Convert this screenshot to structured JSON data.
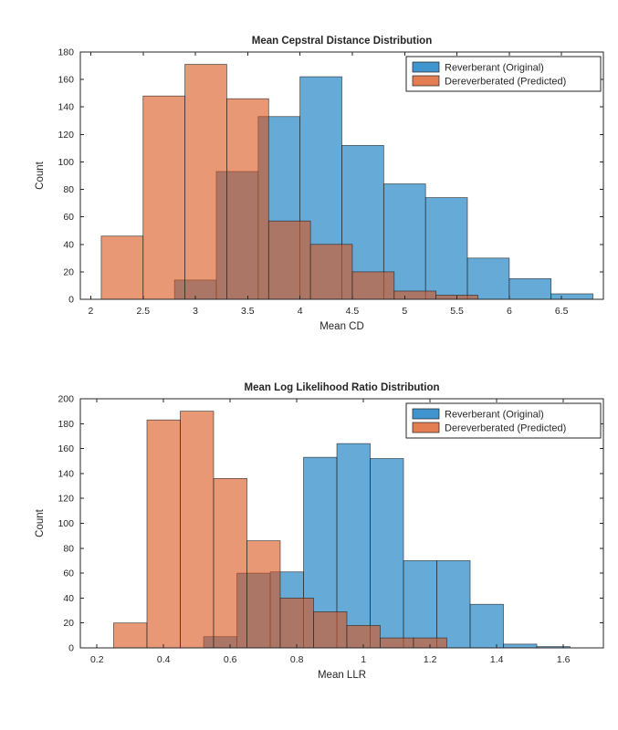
{
  "figure": {
    "background": "#ffffff",
    "axis_color": "#262626",
    "edge_color": "#1f1f1f"
  },
  "chart_data": [
    {
      "type": "bar",
      "subtype": "overlapping-histogram",
      "title": "Mean Cepstral Distance Distribution",
      "xlabel": "Mean CD",
      "ylabel": "Count",
      "xlim": [
        1.9,
        6.9
      ],
      "ylim": [
        0,
        180
      ],
      "xticks": [
        2,
        2.5,
        3,
        3.5,
        4,
        4.5,
        5,
        5.5,
        6,
        6.5
      ],
      "yticks": [
        0,
        20,
        40,
        60,
        80,
        100,
        120,
        140,
        160,
        180
      ],
      "grid": false,
      "legend_position": "top-right",
      "series": [
        {
          "name": "Reverberant (Original)",
          "color": "#0072BD",
          "face_alpha": 0.6,
          "bin_start": 2.8,
          "bin_width": 0.4,
          "values": [
            14,
            93,
            133,
            162,
            112,
            84,
            74,
            30,
            15,
            4
          ]
        },
        {
          "name": "Dereverberated (Predicted)",
          "color": "#D95319",
          "face_alpha": 0.6,
          "bin_start": 2.1,
          "bin_width": 0.4,
          "values": [
            46,
            148,
            171,
            146,
            57,
            40,
            20,
            6,
            3
          ]
        }
      ]
    },
    {
      "type": "bar",
      "subtype": "overlapping-histogram",
      "title": "Mean Log Likelihood Ratio Distribution",
      "xlabel": "Mean LLR",
      "ylabel": "Count",
      "xlim": [
        0.15,
        1.72
      ],
      "ylim": [
        0,
        200
      ],
      "xticks": [
        0.2,
        0.4,
        0.6,
        0.8,
        1,
        1.2,
        1.4,
        1.6
      ],
      "yticks": [
        0,
        20,
        40,
        60,
        80,
        100,
        120,
        140,
        160,
        180,
        200
      ],
      "grid": false,
      "legend_position": "top-right",
      "series": [
        {
          "name": "Reverberant (Original)",
          "color": "#0072BD",
          "face_alpha": 0.6,
          "bin_start": 0.52,
          "bin_width": 0.1,
          "values": [
            9,
            60,
            61,
            153,
            164,
            152,
            70,
            70,
            35,
            3,
            1
          ]
        },
        {
          "name": "Dereverberated (Predicted)",
          "color": "#D95319",
          "face_alpha": 0.6,
          "bin_start": 0.25,
          "bin_width": 0.1,
          "values": [
            20,
            183,
            190,
            136,
            86,
            40,
            29,
            18,
            8,
            8
          ]
        }
      ]
    }
  ]
}
